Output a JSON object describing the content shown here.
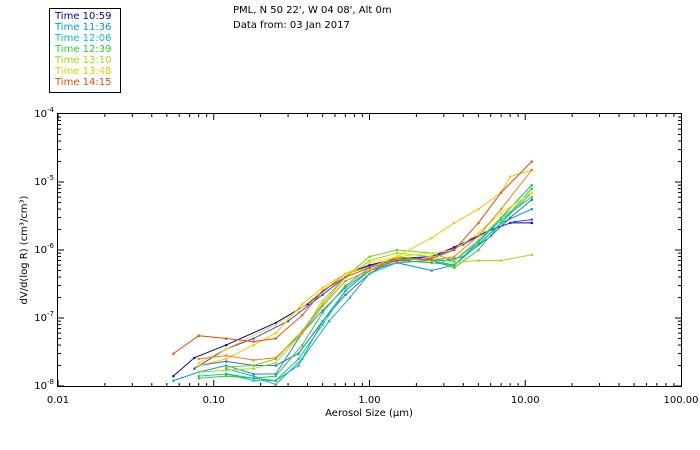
{
  "header": {
    "line1": "PML, N 50 22', W 04 08', Alt 0m",
    "line2": "Data from: 03 Jan 2017"
  },
  "legend": [
    {
      "label": "Time 10:59",
      "color": "#0000c8"
    },
    {
      "label": "Time 11:36",
      "color": "#0098f0"
    },
    {
      "label": "Time 12:06",
      "color": "#00c8c8"
    },
    {
      "label": "Time 12:39",
      "color": "#28d228"
    },
    {
      "label": "Time 13:10",
      "color": "#a0e000"
    },
    {
      "label": "Time 13:48",
      "color": "#f0c800"
    },
    {
      "label": "Time 14:15",
      "color": "#e85000"
    }
  ],
  "chart_data": {
    "type": "line",
    "xscale": "log",
    "yscale": "log",
    "xlim": [
      0.01,
      100
    ],
    "ylim": [
      1e-08,
      0.0001
    ],
    "xlabel": "Aerosol Size (µm)",
    "ylabel": "dV/d(log R) (cm³/cm³)",
    "x_ticks": [
      "0.01",
      "0.10",
      "1.00",
      "10.00",
      "100.00"
    ],
    "y_ticks": [
      {
        "base": "10",
        "exp": "-8"
      },
      {
        "base": "10",
        "exp": "-7"
      },
      {
        "base": "10",
        "exp": "-6"
      },
      {
        "base": "10",
        "exp": "-5"
      },
      {
        "base": "10",
        "exp": "-4"
      }
    ],
    "series": [
      {
        "name": "Time 10:59",
        "color": "#0000c8",
        "points": [
          [
            0.055,
            1.4e-08
          ],
          [
            0.075,
            2.6e-08
          ],
          [
            0.12,
            4e-08
          ],
          [
            0.25,
            8.5e-08
          ],
          [
            0.4,
            1.6e-07
          ],
          [
            0.7,
            4.5e-07
          ],
          [
            1.0,
            6e-07
          ],
          [
            1.5,
            7.5e-07
          ],
          [
            2.5,
            8e-07
          ],
          [
            3.5,
            1.1e-06
          ],
          [
            5.5,
            1.8e-06
          ],
          [
            8,
            2.5e-06
          ],
          [
            11,
            2.5e-06
          ]
        ]
      },
      {
        "name": "Time 10:59",
        "color": "#4040ff",
        "points": [
          [
            0.075,
            1.8e-08
          ],
          [
            0.12,
            3.5e-08
          ],
          [
            0.18,
            5e-08
          ],
          [
            0.3,
            9e-08
          ],
          [
            0.5,
            2.2e-07
          ],
          [
            0.8,
            5e-07
          ],
          [
            1.2,
            6.5e-07
          ],
          [
            1.8,
            7.2e-07
          ],
          [
            2.8,
            8.5e-07
          ],
          [
            4,
            1.2e-06
          ],
          [
            6,
            2e-06
          ],
          [
            8.5,
            2.6e-06
          ],
          [
            11,
            2.8e-06
          ]
        ]
      },
      {
        "name": "Time 11:36",
        "color": "#0098f0",
        "points": [
          [
            0.055,
            1.2e-08
          ],
          [
            0.08,
            1.6e-08
          ],
          [
            0.12,
            2e-08
          ],
          [
            0.18,
            1.5e-08
          ],
          [
            0.25,
            1.5e-08
          ],
          [
            0.37,
            6e-08
          ],
          [
            0.5,
            1.3e-07
          ],
          [
            0.7,
            2.8e-07
          ],
          [
            1.0,
            5e-07
          ],
          [
            1.5,
            6.5e-07
          ],
          [
            2.5,
            5e-07
          ],
          [
            3.5,
            6e-07
          ],
          [
            5,
            1.2e-06
          ],
          [
            7,
            2.5e-06
          ],
          [
            11,
            4e-06
          ]
        ]
      },
      {
        "name": "Time 11:36",
        "color": "#2a70e0",
        "points": [
          [
            0.08,
            2e-08
          ],
          [
            0.12,
            2.3e-08
          ],
          [
            0.18,
            2e-08
          ],
          [
            0.25,
            2e-08
          ],
          [
            0.35,
            3e-08
          ],
          [
            0.5,
            9e-08
          ],
          [
            0.7,
            2.2e-07
          ],
          [
            1.0,
            4.5e-07
          ],
          [
            1.4,
            7e-07
          ],
          [
            2,
            7.5e-07
          ],
          [
            3,
            7e-07
          ],
          [
            4,
            8e-07
          ],
          [
            6,
            1.6e-06
          ],
          [
            8,
            3e-06
          ],
          [
            11,
            5.5e-06
          ]
        ]
      },
      {
        "name": "Time 12:06",
        "color": "#00c8c8",
        "points": [
          [
            0.08,
            1.4e-08
          ],
          [
            0.12,
            1.5e-08
          ],
          [
            0.18,
            1.2e-08
          ],
          [
            0.25,
            1.2e-08
          ],
          [
            0.35,
            2.5e-08
          ],
          [
            0.5,
            8e-08
          ],
          [
            0.7,
            2.5e-07
          ],
          [
            1.0,
            5e-07
          ],
          [
            1.5,
            7.5e-07
          ],
          [
            2.5,
            7e-07
          ],
          [
            3.5,
            7e-07
          ],
          [
            5,
            1.3e-06
          ],
          [
            7,
            2.8e-06
          ],
          [
            11,
            6e-06
          ]
        ]
      },
      {
        "name": "Time 12:06",
        "color": "#20b0b0",
        "points": [
          [
            0.12,
            1.8e-08
          ],
          [
            0.18,
            1.4e-08
          ],
          [
            0.25,
            1.05e-08
          ],
          [
            0.37,
            2.5e-08
          ],
          [
            0.55,
            9e-08
          ],
          [
            0.75,
            2e-07
          ],
          [
            1.0,
            4.5e-07
          ],
          [
            1.5,
            6.5e-07
          ],
          [
            2.5,
            7e-07
          ],
          [
            3.5,
            6e-07
          ],
          [
            5,
            1.2e-06
          ],
          [
            7,
            2.5e-06
          ],
          [
            11,
            7e-06
          ]
        ]
      },
      {
        "name": "Time 12:39",
        "color": "#28d228",
        "points": [
          [
            0.08,
            1.3e-08
          ],
          [
            0.12,
            1.4e-08
          ],
          [
            0.18,
            1.3e-08
          ],
          [
            0.25,
            1.4e-08
          ],
          [
            0.37,
            4e-08
          ],
          [
            0.5,
            1.2e-07
          ],
          [
            0.7,
            3e-07
          ],
          [
            1.0,
            5.5e-07
          ],
          [
            1.5,
            8e-07
          ],
          [
            2.5,
            7e-07
          ],
          [
            3.5,
            5.5e-07
          ],
          [
            5,
            1e-06
          ],
          [
            7,
            2.5e-06
          ],
          [
            11,
            8e-06
          ]
        ]
      },
      {
        "name": "Time 12:39",
        "color": "#10c070",
        "points": [
          [
            0.12,
            1.5e-08
          ],
          [
            0.18,
            1.3e-08
          ],
          [
            0.25,
            1.2e-08
          ],
          [
            0.35,
            2e-08
          ],
          [
            0.5,
            9e-08
          ],
          [
            0.7,
            2.5e-07
          ],
          [
            1.0,
            5e-07
          ],
          [
            1.5,
            7e-07
          ],
          [
            2.5,
            6.5e-07
          ],
          [
            3.5,
            6e-07
          ],
          [
            5,
            1.3e-06
          ],
          [
            7,
            3e-06
          ],
          [
            11,
            9e-06
          ]
        ]
      },
      {
        "name": "Time 13:10",
        "color": "#a0e000",
        "points": [
          [
            0.08,
            1.6e-08
          ],
          [
            0.12,
            1.7e-08
          ],
          [
            0.18,
            1.8e-08
          ],
          [
            0.25,
            2.2e-08
          ],
          [
            0.37,
            6e-08
          ],
          [
            0.5,
            1.8e-07
          ],
          [
            0.7,
            4e-07
          ],
          [
            1.0,
            7e-07
          ],
          [
            1.5,
            9e-07
          ],
          [
            2.5,
            8e-07
          ],
          [
            3.5,
            6.5e-07
          ],
          [
            5,
            7e-07
          ],
          [
            7,
            7e-07
          ],
          [
            11,
            8.5e-07
          ]
        ]
      },
      {
        "name": "Time 13:10",
        "color": "#70d020",
        "points": [
          [
            0.12,
            1.9e-08
          ],
          [
            0.18,
            2e-08
          ],
          [
            0.25,
            2.5e-08
          ],
          [
            0.37,
            6.5e-08
          ],
          [
            0.5,
            1.6e-07
          ],
          [
            0.7,
            4e-07
          ],
          [
            1.0,
            8e-07
          ],
          [
            1.5,
            1e-06
          ],
          [
            2.5,
            9e-07
          ],
          [
            3.5,
            7e-07
          ],
          [
            5,
            1.4e-06
          ],
          [
            7,
            3e-06
          ],
          [
            11,
            6e-06
          ]
        ]
      },
      {
        "name": "Time 13:48",
        "color": "#f0c800",
        "points": [
          [
            0.08,
            2e-08
          ],
          [
            0.12,
            2.5e-08
          ],
          [
            0.18,
            4e-08
          ],
          [
            0.25,
            6e-08
          ],
          [
            0.37,
            1.6e-07
          ],
          [
            0.5,
            2.8e-07
          ],
          [
            0.7,
            4.5e-07
          ],
          [
            1.0,
            5.5e-07
          ],
          [
            1.5,
            8e-07
          ],
          [
            2.5,
            1.5e-06
          ],
          [
            3.5,
            2.5e-06
          ],
          [
            5,
            4e-06
          ],
          [
            7,
            7e-06
          ],
          [
            8,
            1.2e-05
          ],
          [
            11,
            1.5e-05
          ]
        ]
      },
      {
        "name": "Time 13:48",
        "color": "#f0e000",
        "points": [
          [
            0.08,
            2.2e-08
          ],
          [
            0.12,
            3.5e-08
          ],
          [
            0.25,
            8e-08
          ],
          [
            0.35,
            1.3e-07
          ],
          [
            0.5,
            2.5e-07
          ],
          [
            0.7,
            4.5e-07
          ],
          [
            1.0,
            6.5e-07
          ],
          [
            1.5,
            8e-07
          ],
          [
            2.5,
            9e-07
          ],
          [
            3.5,
            1e-06
          ],
          [
            5,
            1.8e-06
          ],
          [
            7,
            3.5e-06
          ],
          [
            11,
            7e-06
          ]
        ]
      },
      {
        "name": "Time 14:15",
        "color": "#e85000",
        "points": [
          [
            0.055,
            3e-08
          ],
          [
            0.08,
            5.5e-08
          ],
          [
            0.12,
            5e-08
          ],
          [
            0.18,
            4.5e-08
          ],
          [
            0.25,
            5e-08
          ],
          [
            0.37,
            1.1e-07
          ],
          [
            0.5,
            2.5e-07
          ],
          [
            0.7,
            4e-07
          ],
          [
            1.0,
            5.5e-07
          ],
          [
            1.5,
            7e-07
          ],
          [
            2.5,
            7.5e-07
          ],
          [
            3.5,
            1e-06
          ],
          [
            5,
            2.5e-06
          ],
          [
            7,
            7e-06
          ],
          [
            11,
            2e-05
          ]
        ]
      },
      {
        "name": "Time 14:15",
        "color": "#ff8000",
        "points": [
          [
            0.08,
            2.5e-08
          ],
          [
            0.12,
            2.8e-08
          ],
          [
            0.18,
            2.4e-08
          ],
          [
            0.25,
            2.6e-08
          ],
          [
            0.37,
            6e-08
          ],
          [
            0.5,
            1.5e-07
          ],
          [
            0.7,
            3.5e-07
          ],
          [
            1.0,
            5e-07
          ],
          [
            1.5,
            7.5e-07
          ],
          [
            2.5,
            7e-07
          ],
          [
            3.5,
            8e-07
          ],
          [
            5,
            1.6e-06
          ],
          [
            7,
            4e-06
          ],
          [
            11,
            1.5e-05
          ]
        ]
      }
    ]
  }
}
